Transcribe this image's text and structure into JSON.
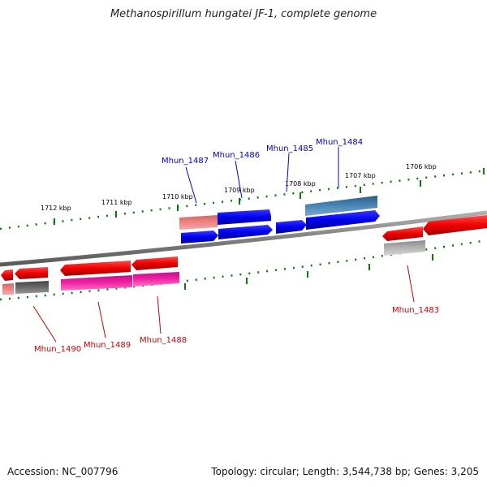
{
  "title": "Methanospirillum hungatei JF-1, complete genome",
  "footer": {
    "accession": "Accession: NC_007796",
    "summary": "Topology: circular; Length: 3,544,738 bp; Genes: 3,205"
  },
  "ticks": [
    "1712 kbp",
    "1711 kbp",
    "1710 kbp",
    "1709 kbp",
    "1708 kbp",
    "1707 kbp",
    "1706 kbp"
  ],
  "gene_labels_top": [
    "Mhun_1487",
    "Mhun_1486",
    "Mhun_1485",
    "Mhun_1484"
  ],
  "gene_labels_bottom": [
    "Mhun_1490",
    "Mhun_1489",
    "Mhun_1488",
    "Mhun_1483"
  ],
  "colors": {
    "backbone": "#808080",
    "forward_cds": "#0000ee",
    "reverse_cds": "#ee0000",
    "tick_mark": "#0a7a0a",
    "top_label": "#0000cc",
    "bottom_label": "#cc0000"
  }
}
